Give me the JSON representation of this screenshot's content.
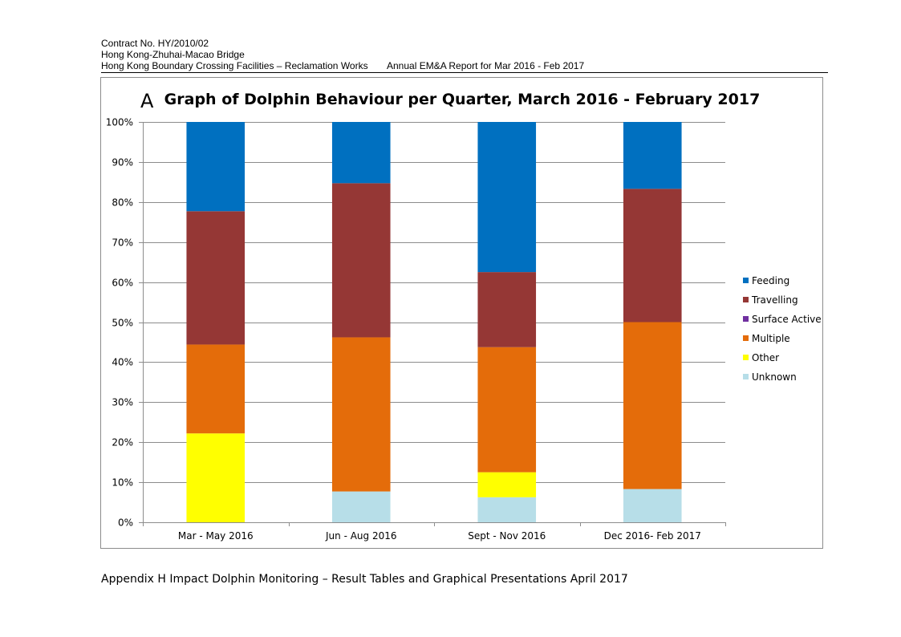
{
  "header": {
    "line1": "Contract No. HY/2010/02",
    "line2": "Hong Kong-Zhuhai-Macao Bridge",
    "line3_left": "Hong Kong Boundary Crossing Facilities – Reclamation Works",
    "line3_right": "Annual EM&A Report for Mar 2016 - Feb 2017"
  },
  "panel_letter": "A",
  "footer": "Appendix H Impact Dolphin Monitoring – Result Tables and Graphical Presentations   April 2017",
  "chart_data": {
    "type": "bar",
    "stacked": true,
    "percent_stacked": true,
    "title": "Graph of Dolphin Behaviour per Quarter, March 2016 - February 2017",
    "xlabel": "",
    "ylabel": "",
    "categories": [
      "Mar - May 2016",
      "Jun - Aug 2016",
      "Sept - Nov 2016",
      "Dec 2016- Feb 2017"
    ],
    "y_ticks": [
      "0%",
      "10%",
      "20%",
      "30%",
      "40%",
      "50%",
      "60%",
      "70%",
      "80%",
      "90%",
      "100%"
    ],
    "ylim": [
      0,
      100
    ],
    "grid": true,
    "legend_position": "right",
    "series": [
      {
        "name": "Unknown",
        "color": "#b7dee8",
        "values": [
          0,
          7.7,
          6.25,
          8.3
        ]
      },
      {
        "name": "Other",
        "color": "#ffff00",
        "values": [
          22.2,
          0,
          6.25,
          0
        ]
      },
      {
        "name": "Multiple",
        "color": "#e46c0a",
        "values": [
          22.2,
          38.5,
          31.25,
          41.7
        ]
      },
      {
        "name": "Surface Active",
        "color": "#7030a0",
        "values": [
          0,
          0,
          0,
          0
        ]
      },
      {
        "name": "Travelling",
        "color": "#953735",
        "values": [
          33.3,
          38.5,
          18.75,
          33.3
        ]
      },
      {
        "name": "Feeding",
        "color": "#0070c0",
        "values": [
          22.3,
          15.3,
          37.5,
          16.7
        ]
      }
    ],
    "legend_order": [
      "Feeding",
      "Travelling",
      "Surface Active",
      "Multiple",
      "Other",
      "Unknown"
    ]
  }
}
